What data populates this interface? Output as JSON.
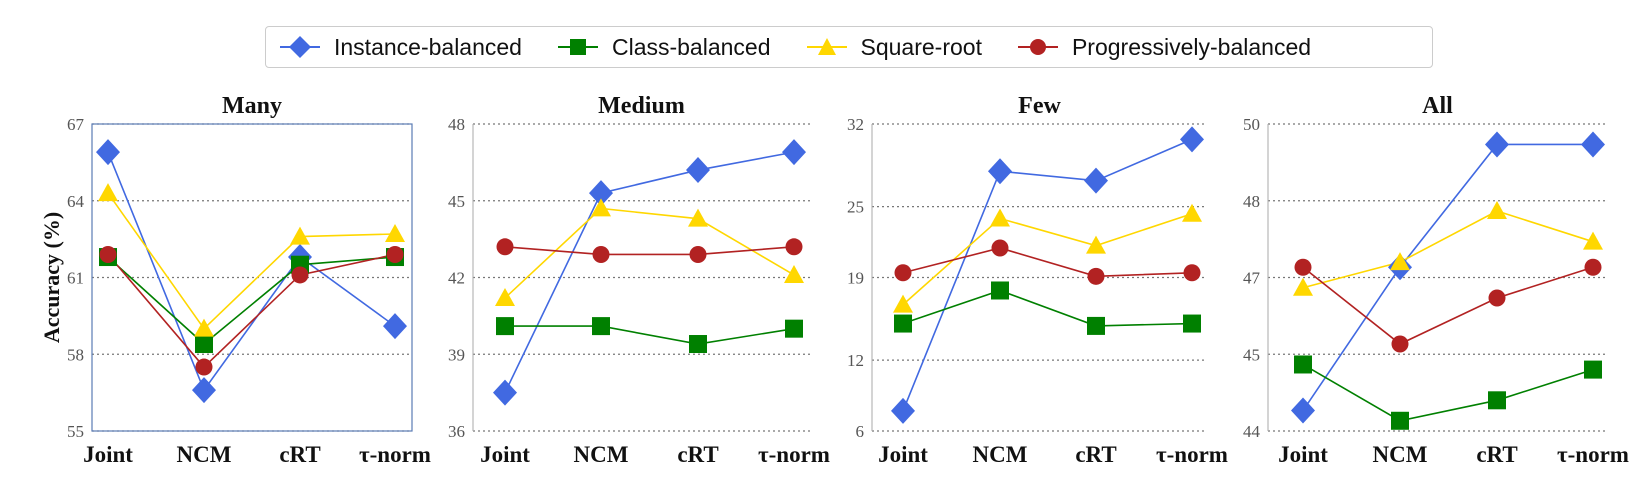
{
  "legend": {
    "items": [
      {
        "label": "Instance-balanced",
        "color": "#4169E1",
        "marker": "diamond"
      },
      {
        "label": "Class-balanced",
        "color": "#008000",
        "marker": "square"
      },
      {
        "label": "Square-root",
        "color": "#FFD700",
        "marker": "triangle"
      },
      {
        "label": "Progressively-balanced",
        "color": "#B22222",
        "marker": "circle"
      }
    ]
  },
  "chart_data": [
    {
      "type": "line",
      "title": "Many",
      "ylabel": "Accuracy (%)",
      "categories": [
        "Joint",
        "NCM",
        "cRT",
        "τ-norm"
      ],
      "ylim": [
        55,
        67
      ],
      "yticks": [
        55,
        58,
        61,
        64,
        67
      ],
      "grid": true,
      "boxed": true,
      "series": [
        {
          "name": "Instance-balanced",
          "values": [
            65.9,
            56.6,
            61.8,
            59.1
          ]
        },
        {
          "name": "Class-balanced",
          "values": [
            61.8,
            58.4,
            61.5,
            61.8
          ]
        },
        {
          "name": "Square-root",
          "values": [
            64.3,
            59.0,
            62.6,
            62.7
          ]
        },
        {
          "name": "Progressively-balanced",
          "values": [
            61.9,
            57.5,
            61.1,
            61.9
          ]
        }
      ]
    },
    {
      "type": "line",
      "title": "Medium",
      "ylabel": "",
      "categories": [
        "Joint",
        "NCM",
        "cRT",
        "τ-norm"
      ],
      "ylim": [
        36,
        48
      ],
      "yticks": [
        36,
        39,
        42,
        45,
        48
      ],
      "grid": true,
      "boxed": false,
      "series": [
        {
          "name": "Instance-balanced",
          "values": [
            37.5,
            45.3,
            46.2,
            46.9
          ]
        },
        {
          "name": "Class-balanced",
          "values": [
            40.1,
            40.1,
            39.4,
            40.0
          ]
        },
        {
          "name": "Square-root",
          "values": [
            41.2,
            44.7,
            44.3,
            42.1
          ]
        },
        {
          "name": "Progressively-balanced",
          "values": [
            43.2,
            42.9,
            42.9,
            43.2
          ]
        }
      ]
    },
    {
      "type": "line",
      "title": "Few",
      "ylabel": "",
      "categories": [
        "Joint",
        "NCM",
        "cRT",
        "τ-norm"
      ],
      "ylim": [
        6,
        32
      ],
      "yticks": [
        6,
        12,
        19,
        25,
        32
      ],
      "grid": true,
      "boxed": false,
      "series": [
        {
          "name": "Instance-balanced",
          "values": [
            7.7,
            28.0,
            27.2,
            30.7
          ]
        },
        {
          "name": "Class-balanced",
          "values": [
            15.1,
            17.9,
            14.9,
            15.1
          ]
        },
        {
          "name": "Square-root",
          "values": [
            16.7,
            24.0,
            21.7,
            24.4
          ]
        },
        {
          "name": "Progressively-balanced",
          "values": [
            19.4,
            21.5,
            19.1,
            19.4
          ]
        }
      ]
    },
    {
      "type": "line",
      "title": "All",
      "ylabel": "",
      "categories": [
        "Joint",
        "NCM",
        "cRT",
        "τ-norm"
      ],
      "ylim": [
        44,
        50
      ],
      "yticks": [
        44,
        45,
        47,
        48,
        50
      ],
      "ytick_values": [
        44,
        45.5,
        47,
        48.5,
        50
      ],
      "grid": true,
      "boxed": false,
      "series": [
        {
          "name": "Instance-balanced",
          "values": [
            44.4,
            47.2,
            49.6,
            49.6
          ]
        },
        {
          "name": "Class-balanced",
          "values": [
            45.3,
            44.2,
            44.6,
            45.2
          ]
        },
        {
          "name": "Square-root",
          "values": [
            46.8,
            47.3,
            48.3,
            47.7
          ]
        },
        {
          "name": "Progressively-balanced",
          "values": [
            47.2,
            45.7,
            46.6,
            47.2
          ]
        }
      ]
    }
  ]
}
